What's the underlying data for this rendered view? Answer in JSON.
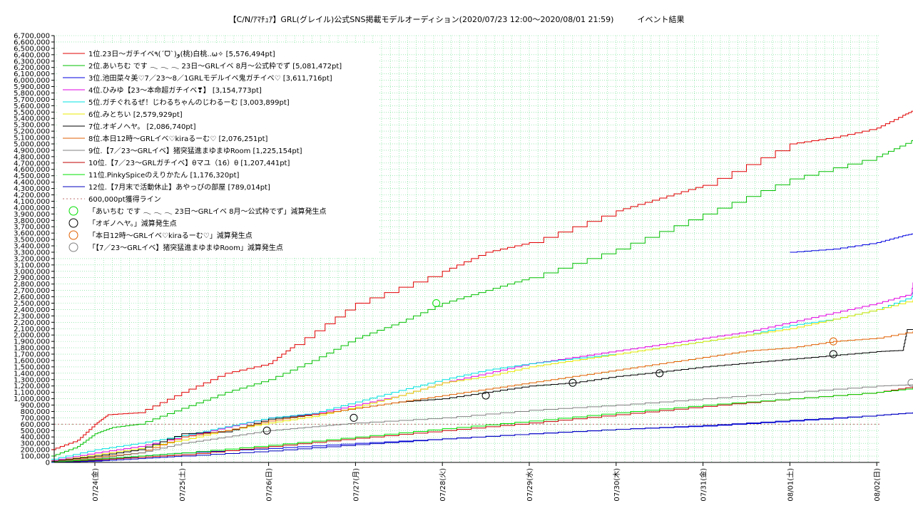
{
  "title": "【C/N/ｱﾏﾁｭｱ】GRL(グレイル)公式SNS掲載モデルオーディション(2020/07/23 12:00～2020/08/01 21:59)　　　イベント結果",
  "chart_data": {
    "type": "line",
    "title": "【C/N/ｱﾏﾁｭｱ】GRL(グレイル)公式SNS掲載モデルオーディション(2020/07/23 12:00～2020/08/01 21:59)　　　イベント結果",
    "xlabel": "",
    "ylabel": "",
    "ylim": [
      0,
      6700000
    ],
    "ytick_step": 100000,
    "xlim_days": [
      0,
      9.5
    ],
    "x_tick_labels": [
      "07/24(金)",
      "07/25(土)",
      "07/26(日)",
      "07/27(月)",
      "07/28(火)",
      "07/29(水)",
      "07/30(木)",
      "07/31(金)",
      "08/01(土)",
      "08/02(日)"
    ],
    "grid": true,
    "legend_position": "top-left",
    "series": [
      {
        "name": "1位.23日～ガチイベ٩(ˊᗜˋ)و(桃)白桃..ω✧ [5,576,494pt]",
        "color": "#e00000",
        "points": [
          [
            -0.5,
            200000
          ],
          [
            -0.2,
            350000
          ],
          [
            0,
            600000
          ],
          [
            0.15,
            750000
          ],
          [
            0.5,
            780000
          ],
          [
            1,
            1100000
          ],
          [
            1.5,
            1400000
          ],
          [
            2,
            1550000
          ],
          [
            2.3,
            1850000
          ],
          [
            3,
            2500000
          ],
          [
            4,
            3000000
          ],
          [
            4.5,
            3300000
          ],
          [
            5,
            3450000
          ],
          [
            6,
            3950000
          ],
          [
            6.5,
            4150000
          ],
          [
            7,
            4350000
          ],
          [
            8,
            5000000
          ],
          [
            8.5,
            5100000
          ],
          [
            9,
            5250000
          ],
          [
            9.3,
            5450000
          ],
          [
            9.5,
            5576494
          ]
        ]
      },
      {
        "name": "2位.あいちむ です 𓂃 𓂃 𓂃 23日～GRLイベ 8月～公式枠でず [5,081,472pt]",
        "color": "#00c000",
        "points": [
          [
            -0.5,
            100000
          ],
          [
            -0.2,
            250000
          ],
          [
            0,
            450000
          ],
          [
            0.2,
            550000
          ],
          [
            0.5,
            600000
          ],
          [
            1,
            850000
          ],
          [
            1.5,
            1100000
          ],
          [
            2,
            1300000
          ],
          [
            2.5,
            1600000
          ],
          [
            3,
            1950000
          ],
          [
            3.5,
            2200000
          ],
          [
            4,
            2500000
          ],
          [
            4.5,
            2700000
          ],
          [
            5,
            2900000
          ],
          [
            6,
            3350000
          ],
          [
            7,
            3900000
          ],
          [
            8,
            4450000
          ],
          [
            9,
            4800000
          ],
          [
            9.4,
            5050000
          ],
          [
            9.5,
            5081472
          ]
        ]
      },
      {
        "name": "3位.池田菜々美♡7／23～8／1GRLモデルイベ鬼ガチイベ♡ [3,611,716pt]",
        "color": "#0000e0",
        "points": [
          [
            -0.5,
            0
          ],
          [
            0,
            30000
          ],
          [
            0.5,
            100000
          ],
          [
            1,
            150000
          ],
          [
            2,
            220000
          ],
          [
            3,
            300000
          ],
          [
            4,
            370000
          ],
          [
            5,
            450000
          ],
          [
            6,
            520000
          ],
          [
            7,
            570000
          ],
          [
            8,
            650000
          ],
          [
            9,
            740000
          ],
          [
            9.5,
            789014
          ]
        ],
        "segment2": [
          [
            8,
            3300000
          ],
          [
            8.5,
            3350000
          ],
          [
            9,
            3450000
          ],
          [
            9.3,
            3560000
          ],
          [
            9.5,
            3611716
          ]
        ]
      },
      {
        "name": "4位.ひみゆ【23～本命超ガチイベ❣】 [3,154,773pt]",
        "color": "#e000e0",
        "points": [
          [
            -0.5,
            30000
          ],
          [
            0,
            150000
          ],
          [
            0.5,
            250000
          ],
          [
            1,
            400000
          ],
          [
            1.5,
            550000
          ],
          [
            2,
            700000
          ],
          [
            2.5,
            760000
          ],
          [
            3,
            900000
          ],
          [
            3.5,
            1050000
          ],
          [
            4,
            1250000
          ],
          [
            4.5,
            1400000
          ],
          [
            5,
            1550000
          ],
          [
            5.5,
            1650000
          ],
          [
            6,
            1750000
          ],
          [
            6.5,
            1850000
          ],
          [
            7,
            1950000
          ],
          [
            7.5,
            2050000
          ],
          [
            8,
            2200000
          ],
          [
            8.5,
            2350000
          ],
          [
            9,
            2500000
          ],
          [
            9.4,
            2650000
          ],
          [
            9.45,
            3154773
          ],
          [
            9.5,
            3154773
          ]
        ]
      },
      {
        "name": "5位.ガチぐれるぜ！じわるちゃんのじわるーむ [3,003,899pt]",
        "color": "#00e0e0",
        "points": [
          [
            -0.5,
            50000
          ],
          [
            0,
            200000
          ],
          [
            0.5,
            300000
          ],
          [
            1,
            420000
          ],
          [
            1.5,
            560000
          ],
          [
            2,
            700000
          ],
          [
            2.5,
            770000
          ],
          [
            3,
            950000
          ],
          [
            3.5,
            1130000
          ],
          [
            4,
            1300000
          ],
          [
            4.5,
            1450000
          ],
          [
            5,
            1550000
          ],
          [
            5.5,
            1630000
          ],
          [
            6,
            1700000
          ],
          [
            6.5,
            1800000
          ],
          [
            7,
            1900000
          ],
          [
            7.5,
            2000000
          ],
          [
            8,
            2150000
          ],
          [
            8.5,
            2250000
          ],
          [
            9,
            2400000
          ],
          [
            9.4,
            2600000
          ],
          [
            9.5,
            3003899
          ]
        ]
      },
      {
        "name": "6位.みとちい [2,579,929pt]",
        "color": "#e8e800",
        "points": [
          [
            -0.5,
            20000
          ],
          [
            0,
            120000
          ],
          [
            0.5,
            220000
          ],
          [
            1,
            350000
          ],
          [
            1.5,
            500000
          ],
          [
            2,
            620000
          ],
          [
            2.5,
            720000
          ],
          [
            3,
            870000
          ],
          [
            3.5,
            1050000
          ],
          [
            4,
            1250000
          ],
          [
            4.5,
            1350000
          ],
          [
            5,
            1500000
          ],
          [
            5.5,
            1600000
          ],
          [
            6,
            1700000
          ],
          [
            6.5,
            1800000
          ],
          [
            7,
            1900000
          ],
          [
            7.5,
            2000000
          ],
          [
            8,
            2100000
          ],
          [
            8.5,
            2250000
          ],
          [
            9,
            2400000
          ],
          [
            9.5,
            2579929
          ]
        ]
      },
      {
        "name": "7位.オギノヘヤ。 [2,086,740pt]",
        "color": "#000000",
        "points": [
          [
            -0.5,
            20000
          ],
          [
            0,
            100000
          ],
          [
            0.5,
            200000
          ],
          [
            1,
            450000
          ],
          [
            1.5,
            480000
          ],
          [
            2,
            680000
          ],
          [
            2.5,
            750000
          ],
          [
            3,
            850000
          ],
          [
            3.5,
            950000
          ],
          [
            4,
            1000000
          ],
          [
            4.5,
            1100000
          ],
          [
            5,
            1200000
          ],
          [
            5.5,
            1250000
          ],
          [
            6,
            1350000
          ],
          [
            6.5,
            1420000
          ],
          [
            7,
            1500000
          ],
          [
            7.5,
            1560000
          ],
          [
            8,
            1620000
          ],
          [
            8.5,
            1680000
          ],
          [
            9,
            1740000
          ],
          [
            9.3,
            1760000
          ],
          [
            9.35,
            2086740
          ],
          [
            9.5,
            2086740
          ]
        ]
      },
      {
        "name": "8位.本日12時～GRLイベ♡kiraるーむ♡ [2,076,251pt]",
        "color": "#e06000",
        "points": [
          [
            -0.5,
            10000
          ],
          [
            0,
            80000
          ],
          [
            0.5,
            150000
          ],
          [
            1,
            400000
          ],
          [
            1.5,
            500000
          ],
          [
            2,
            650000
          ],
          [
            2.5,
            750000
          ],
          [
            3,
            850000
          ],
          [
            3.5,
            950000
          ],
          [
            4,
            1050000
          ],
          [
            4.5,
            1150000
          ],
          [
            5,
            1250000
          ],
          [
            5.5,
            1350000
          ],
          [
            6,
            1450000
          ],
          [
            6.5,
            1550000
          ],
          [
            7,
            1650000
          ],
          [
            7.5,
            1750000
          ],
          [
            8,
            1800000
          ],
          [
            8.5,
            1900000
          ],
          [
            9,
            1950000
          ],
          [
            9.5,
            2076251
          ]
        ]
      },
      {
        "name": "9位.【7／23～GRLイベ】猪突猛進まゆまゆRoom [1,225,154pt]",
        "color": "#808080",
        "points": [
          [
            -0.5,
            10000
          ],
          [
            0,
            60000
          ],
          [
            0.5,
            150000
          ],
          [
            1,
            300000
          ],
          [
            1.5,
            400000
          ],
          [
            2,
            500000
          ],
          [
            2.5,
            560000
          ],
          [
            3,
            620000
          ],
          [
            4,
            700000
          ],
          [
            5,
            820000
          ],
          [
            6,
            900000
          ],
          [
            7,
            1000000
          ],
          [
            8,
            1100000
          ],
          [
            9,
            1200000
          ],
          [
            9.5,
            1225154
          ]
        ]
      },
      {
        "name": "10位.【7／23～GRLガチイベ】θマユ（16）θ [1,207,441pt]",
        "color": "#c00000",
        "points": [
          [
            -0.5,
            5000
          ],
          [
            0,
            40000
          ],
          [
            0.5,
            80000
          ],
          [
            1,
            120000
          ],
          [
            2,
            250000
          ],
          [
            3,
            380000
          ],
          [
            4,
            500000
          ],
          [
            5,
            620000
          ],
          [
            6,
            750000
          ],
          [
            7,
            880000
          ],
          [
            8,
            1000000
          ],
          [
            9,
            1100000
          ],
          [
            9.5,
            1207441
          ]
        ]
      },
      {
        "name": "11位.PinkySpiceのえりかたん [1,176,320pt]",
        "color": "#00e000",
        "points": [
          [
            -0.5,
            5000
          ],
          [
            0,
            50000
          ],
          [
            0.5,
            100000
          ],
          [
            1,
            150000
          ],
          [
            2,
            270000
          ],
          [
            3,
            400000
          ],
          [
            4,
            530000
          ],
          [
            5,
            650000
          ],
          [
            6,
            780000
          ],
          [
            7,
            900000
          ],
          [
            8,
            1000000
          ],
          [
            9,
            1100000
          ],
          [
            9.5,
            1176320
          ]
        ]
      },
      {
        "name": "12位.【7月末で活動休止】あやっぴの部屋 [789,014pt]",
        "color": "#0000c0",
        "points": [
          [
            -0.5,
            0
          ],
          [
            0,
            20000
          ],
          [
            0.5,
            60000
          ],
          [
            1,
            100000
          ],
          [
            2,
            180000
          ],
          [
            3,
            280000
          ],
          [
            4,
            370000
          ],
          [
            5,
            450000
          ],
          [
            6,
            520000
          ],
          [
            7,
            580000
          ],
          [
            8,
            660000
          ],
          [
            9,
            740000
          ],
          [
            9.5,
            789014
          ]
        ]
      }
    ],
    "reference_line": {
      "name": "600,000pt獲得ライン",
      "color": "#c07070",
      "value": 600000
    },
    "markers": [
      {
        "name": "「あいちむ です 𓂃 𓂃 𓂃 23日～GRLイベ 8月～公式枠でず」減算発生点",
        "color": "#00e000",
        "points": [
          [
            3.93,
            2500000
          ]
        ]
      },
      {
        "name": "「オギノヘヤ。」減算発生点",
        "color": "#000000",
        "points": [
          [
            1.98,
            500000
          ],
          [
            2.98,
            700000
          ],
          [
            4.5,
            1050000
          ],
          [
            5.5,
            1250000
          ],
          [
            6.5,
            1400000
          ],
          [
            8.5,
            1700000
          ]
        ]
      },
      {
        "name": "「本日12時～GRLイベ♡kiraるーむ♡」減算発生点",
        "color": "#e06000",
        "points": [
          [
            8.5,
            1900000
          ]
        ]
      },
      {
        "name": "「【7／23～GRLイベ】猪突猛進まゆまゆRoom」減算発生点",
        "color": "#808080",
        "points": [
          [
            9.4,
            1250000
          ]
        ]
      }
    ]
  }
}
